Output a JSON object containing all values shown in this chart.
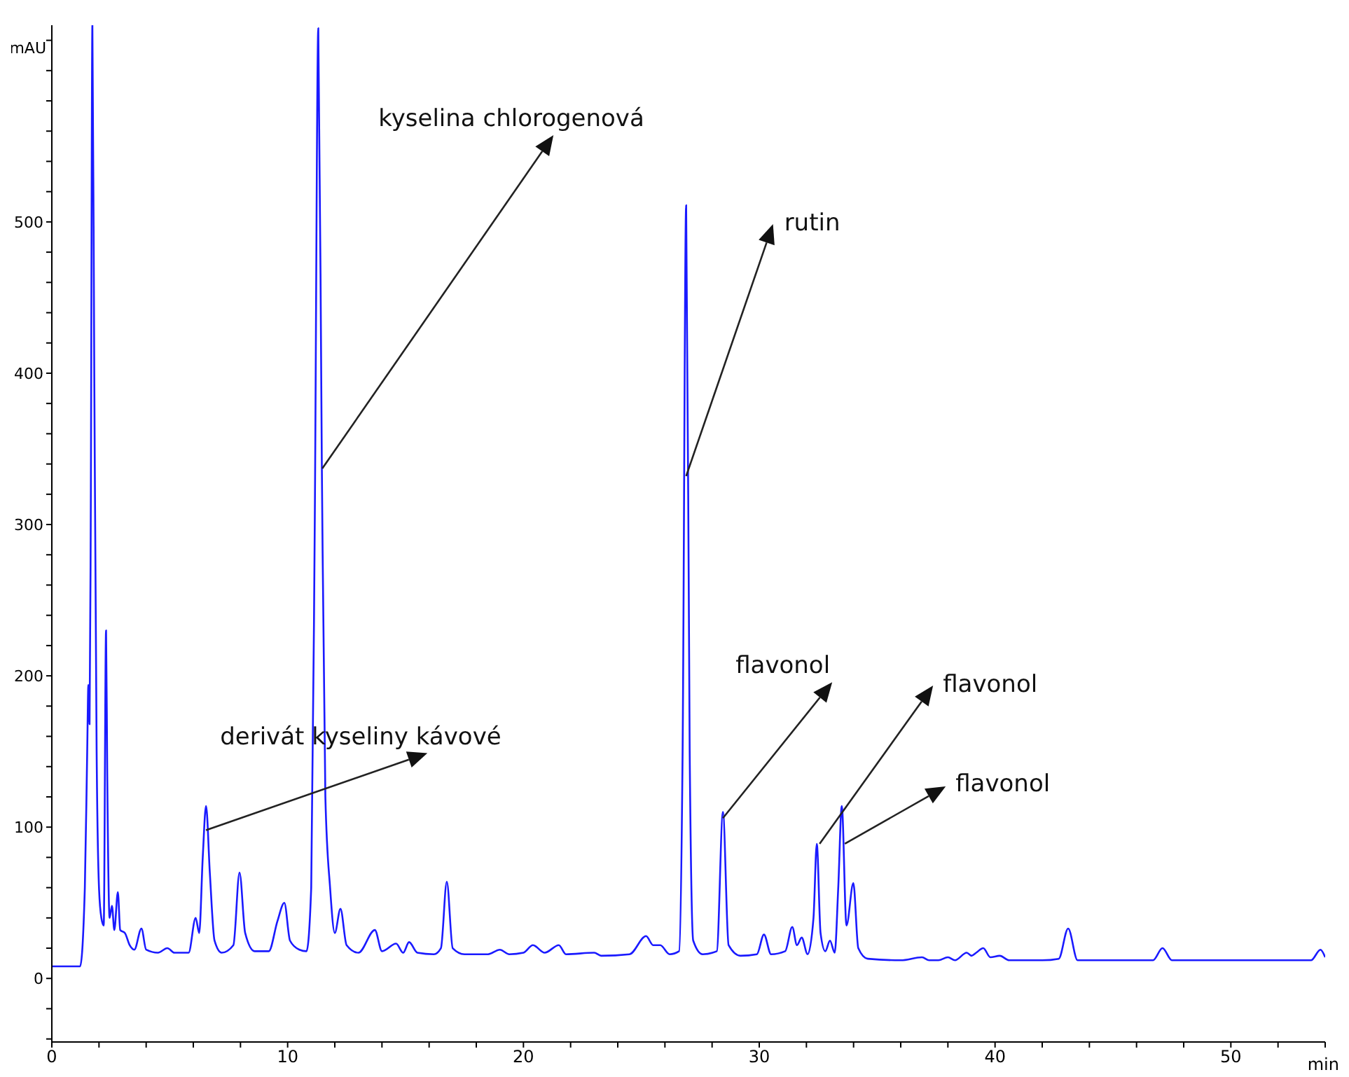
{
  "chart_data": {
    "type": "line",
    "xlabel": "min",
    "ylabel": "mAU",
    "xlim": [
      0,
      54
    ],
    "ylim": [
      -42,
      630
    ],
    "xticks": [
      0,
      {
        "value": 2,
        "label": null
      },
      {
        "value": 4,
        "label": null
      },
      {
        "value": 6,
        "label": null
      },
      {
        "value": 8,
        "label": null
      },
      10,
      {
        "value": 12,
        "label": null
      },
      {
        "value": 14,
        "label": null
      },
      {
        "value": 16,
        "label": null
      },
      {
        "value": 18,
        "label": null
      },
      20,
      {
        "value": 22,
        "label": null
      },
      {
        "value": 24,
        "label": null
      },
      {
        "value": 26,
        "label": null
      },
      {
        "value": 28,
        "label": null
      },
      30,
      {
        "value": 32,
        "label": null
      },
      {
        "value": 34,
        "label": null
      },
      {
        "value": 36,
        "label": null
      },
      {
        "value": 38,
        "label": null
      },
      40,
      {
        "value": 42,
        "label": null
      },
      {
        "value": 44,
        "label": null
      },
      {
        "value": 46,
        "label": null
      },
      {
        "value": 48,
        "label": null
      },
      50,
      {
        "value": 52,
        "label": null
      },
      {
        "value": 54,
        "label": null
      }
    ],
    "yticks": [
      {
        "value": -40,
        "label": null
      },
      {
        "value": -20,
        "label": null
      },
      0,
      {
        "value": 20,
        "label": null
      },
      {
        "value": 40,
        "label": null
      },
      {
        "value": 60,
        "label": null
      },
      {
        "value": 80,
        "label": null
      },
      100,
      {
        "value": 120,
        "label": null
      },
      {
        "value": 140,
        "label": null
      },
      {
        "value": 160,
        "label": null
      },
      {
        "value": 180,
        "label": null
      },
      200,
      {
        "value": 220,
        "label": null
      },
      {
        "value": 240,
        "label": null
      },
      {
        "value": 260,
        "label": null
      },
      {
        "value": 280,
        "label": null
      },
      300,
      {
        "value": 320,
        "label": null
      },
      {
        "value": 340,
        "label": null
      },
      {
        "value": 360,
        "label": null
      },
      {
        "value": 380,
        "label": null
      },
      400,
      {
        "value": 420,
        "label": null
      },
      {
        "value": 440,
        "label": null
      },
      {
        "value": 460,
        "label": null
      },
      {
        "value": 480,
        "label": null
      },
      500,
      {
        "value": 520,
        "label": null
      },
      {
        "value": 540,
        "label": null
      },
      {
        "value": 560,
        "label": null
      },
      {
        "value": 580,
        "label": null
      },
      {
        "value": 600,
        "label": null
      },
      {
        "value": 620,
        "label": null
      }
    ],
    "series": [
      {
        "color": "#1a1aff",
        "x": [
          0,
          1.2,
          1.4,
          1.5,
          1.55,
          1.6,
          1.65,
          1.72,
          1.8,
          1.9,
          2.0,
          2.1,
          2.2,
          2.3,
          2.35,
          2.45,
          2.55,
          2.65,
          2.8,
          2.9,
          3.1,
          3.3,
          3.5,
          3.8,
          4.0,
          4.5,
          4.9,
          5.2,
          5.8,
          6.1,
          6.25,
          6.4,
          6.54,
          6.7,
          6.9,
          7.2,
          7.7,
          7.96,
          8.2,
          8.6,
          9.2,
          9.57,
          9.86,
          10.1,
          10.5,
          10.8,
          11.0,
          11.15,
          11.3,
          11.45,
          11.6,
          11.8,
          12.0,
          12.24,
          12.5,
          13.0,
          13.7,
          14.0,
          14.6,
          14.9,
          15.15,
          15.5,
          16.2,
          16.5,
          16.75,
          17.0,
          17.5,
          18.5,
          19.0,
          19.4,
          20.0,
          20.4,
          20.9,
          21.5,
          21.8,
          23.0,
          23.3,
          24.5,
          25.2,
          25.5,
          25.8,
          26.2,
          26.6,
          26.75,
          26.9,
          27.05,
          27.2,
          27.6,
          28.2,
          28.46,
          28.7,
          29.2,
          29.9,
          30.2,
          30.5,
          31.1,
          31.4,
          31.6,
          31.8,
          32.05,
          32.3,
          32.44,
          32.6,
          32.8,
          33.0,
          33.2,
          33.35,
          33.5,
          33.7,
          33.99,
          34.2,
          34.6,
          36.0,
          36.9,
          37.2,
          37.6,
          38.0,
          38.3,
          38.8,
          39.0,
          39.2,
          39.5,
          39.8,
          40.2,
          40.6,
          42.0,
          42.7,
          43.1,
          43.5,
          44.5,
          46.0,
          46.7,
          47.1,
          47.5,
          49.5,
          51.5,
          53.4,
          53.8,
          54.0
        ],
        "values": [
          8,
          8,
          60,
          150,
          194,
          168,
          300,
          630,
          400,
          150,
          60,
          40,
          35,
          230,
          135,
          40,
          48,
          32,
          57,
          32,
          30,
          22,
          19,
          33,
          19,
          17,
          20,
          17,
          17,
          40,
          30,
          80,
          114,
          70,
          25,
          17,
          22,
          70,
          30,
          18,
          18,
          38,
          50,
          25,
          19,
          18,
          60,
          300,
          628,
          340,
          120,
          60,
          30,
          46,
          22,
          17,
          32,
          18,
          23,
          17,
          24,
          17,
          16,
          20,
          64,
          20,
          16,
          16,
          19,
          16,
          17,
          22,
          17,
          22,
          16,
          17,
          15,
          16,
          28,
          22,
          22,
          16,
          18,
          150,
          511,
          150,
          25,
          16,
          18,
          110,
          22,
          15,
          16,
          29,
          16,
          18,
          34,
          22,
          27,
          16,
          40,
          89,
          30,
          18,
          25,
          17,
          60,
          114,
          35,
          63,
          20,
          13,
          12,
          14,
          12,
          12,
          14,
          12,
          17,
          15,
          17,
          20,
          14,
          15,
          12,
          12,
          13,
          33,
          12,
          12,
          12,
          12,
          20,
          12,
          12,
          12,
          12,
          19,
          14
        ]
      }
    ],
    "annotations": [
      {
        "text": "derivát kyseliny kávové",
        "x": 6.54,
        "y": 98
      },
      {
        "text": "kyselina chlorogenová",
        "x": 11.47,
        "y": 337
      },
      {
        "text": "rutin",
        "x": 26.9,
        "y": 332
      },
      {
        "text": "flavonol",
        "x": 28.46,
        "y": 106
      },
      {
        "text": "flavonol",
        "x": 32.56,
        "y": 89
      },
      {
        "text": "flavonol",
        "x": 33.63,
        "y": 89
      }
    ]
  }
}
